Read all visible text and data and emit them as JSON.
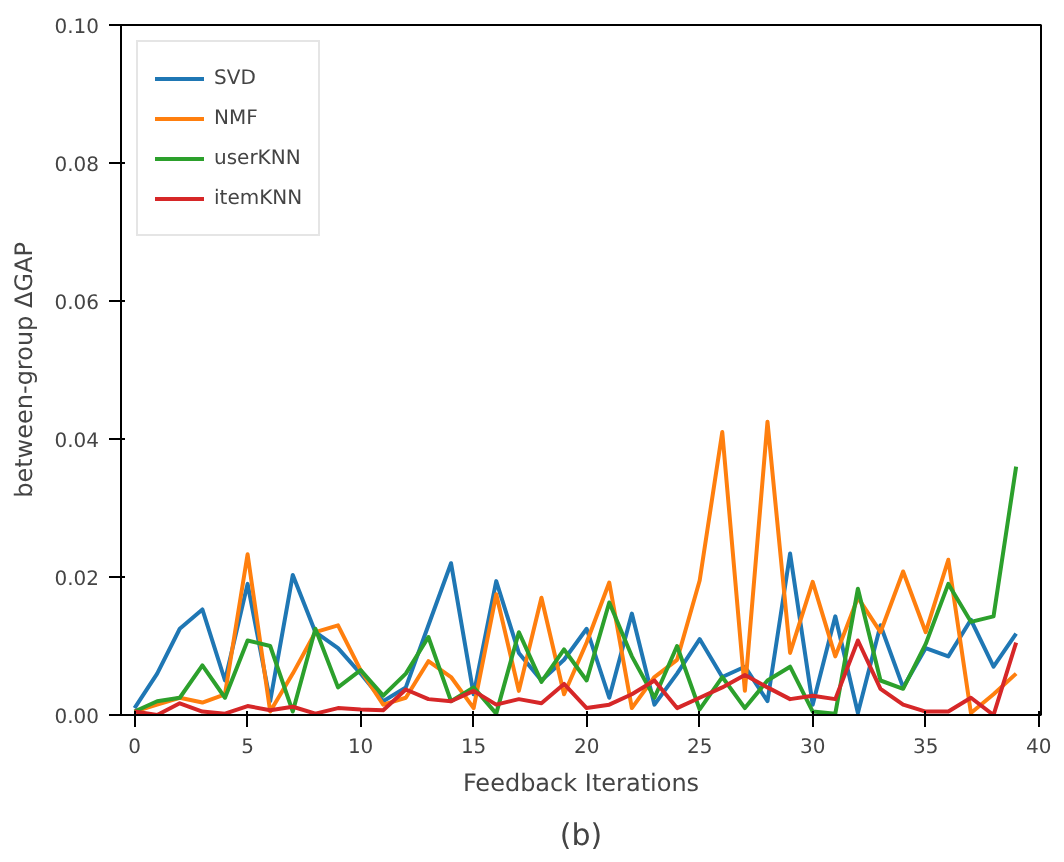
{
  "chart_data": {
    "type": "line",
    "xlabel": "Feedback Iterations",
    "ylabel": "between-group ΔGAP",
    "x": [
      0,
      1,
      2,
      3,
      4,
      5,
      6,
      7,
      8,
      9,
      10,
      11,
      12,
      13,
      14,
      15,
      16,
      17,
      18,
      19,
      20,
      21,
      22,
      23,
      24,
      25,
      26,
      27,
      28,
      29,
      30,
      31,
      32,
      33,
      34,
      35,
      36,
      37,
      38,
      39
    ],
    "series": [
      {
        "name": "SVD",
        "color": "#1f77b4",
        "values": [
          0.001,
          0.006,
          0.0125,
          0.0153,
          0.005,
          0.019,
          0.002,
          0.0203,
          0.012,
          0.0097,
          0.006,
          0.002,
          0.004,
          0.013,
          0.022,
          0.003,
          0.0194,
          0.009,
          0.005,
          0.008,
          0.0125,
          0.0025,
          0.0147,
          0.0015,
          0.006,
          0.011,
          0.0055,
          0.007,
          0.002,
          0.0234,
          0.0015,
          0.0143,
          0.0003,
          0.013,
          0.004,
          0.0097,
          0.0085,
          0.0138,
          0.007,
          0.0118
        ]
      },
      {
        "name": "NMF",
        "color": "#ff7f0e",
        "values": [
          0.0005,
          0.0015,
          0.0025,
          0.0018,
          0.003,
          0.0233,
          0.0005,
          0.006,
          0.012,
          0.013,
          0.0065,
          0.0015,
          0.0025,
          0.0078,
          0.0055,
          0.001,
          0.0175,
          0.0035,
          0.017,
          0.003,
          0.0105,
          0.0192,
          0.001,
          0.0055,
          0.008,
          0.0195,
          0.041,
          0.0035,
          0.0425,
          0.009,
          0.0193,
          0.0085,
          0.017,
          0.012,
          0.0208,
          0.012,
          0.0225,
          0.0003,
          0.003,
          0.006
        ]
      },
      {
        "name": "userKNN",
        "color": "#2ca02c",
        "values": [
          0.0005,
          0.002,
          0.0025,
          0.0072,
          0.0025,
          0.0108,
          0.01,
          0.0005,
          0.0125,
          0.004,
          0.0065,
          0.0028,
          0.006,
          0.0113,
          0.002,
          0.004,
          0.0002,
          0.012,
          0.0048,
          0.0095,
          0.005,
          0.0163,
          0.0085,
          0.0025,
          0.01,
          0.0008,
          0.0055,
          0.001,
          0.005,
          0.007,
          0.0005,
          0.0002,
          0.0183,
          0.005,
          0.0038,
          0.0103,
          0.019,
          0.0135,
          0.0143,
          0.036
        ]
      },
      {
        "name": "itemKNN",
        "color": "#d62728",
        "values": [
          0.0005,
          0.0,
          0.0017,
          0.0005,
          0.0002,
          0.0013,
          0.0007,
          0.0012,
          0.0002,
          0.001,
          0.0008,
          0.0007,
          0.0037,
          0.0023,
          0.002,
          0.0035,
          0.0015,
          0.0023,
          0.0017,
          0.0045,
          0.001,
          0.0015,
          0.003,
          0.005,
          0.001,
          0.0025,
          0.004,
          0.0058,
          0.004,
          0.0023,
          0.0028,
          0.0023,
          0.0108,
          0.0038,
          0.0015,
          0.0005,
          0.0005,
          0.0025,
          0.0,
          0.0105
        ]
      }
    ],
    "xlim": [
      -0.6,
      40.1
    ],
    "ylim": [
      0,
      0.1
    ],
    "xticks": [
      0,
      5,
      10,
      15,
      20,
      25,
      30,
      35,
      40
    ],
    "yticks": [
      {
        "value": 0,
        "label": "0.00"
      },
      {
        "value": 0.02,
        "label": "0.02"
      },
      {
        "value": 0.04,
        "label": "0.04"
      },
      {
        "value": 0.06,
        "label": "0.06"
      },
      {
        "value": 0.08,
        "label": "0.08"
      },
      {
        "value": 0.1,
        "label": "0.10"
      }
    ],
    "grid": false,
    "legend": "top left",
    "marker": "none",
    "line_style": "solid",
    "annotations": [
      "(b)"
    ]
  }
}
